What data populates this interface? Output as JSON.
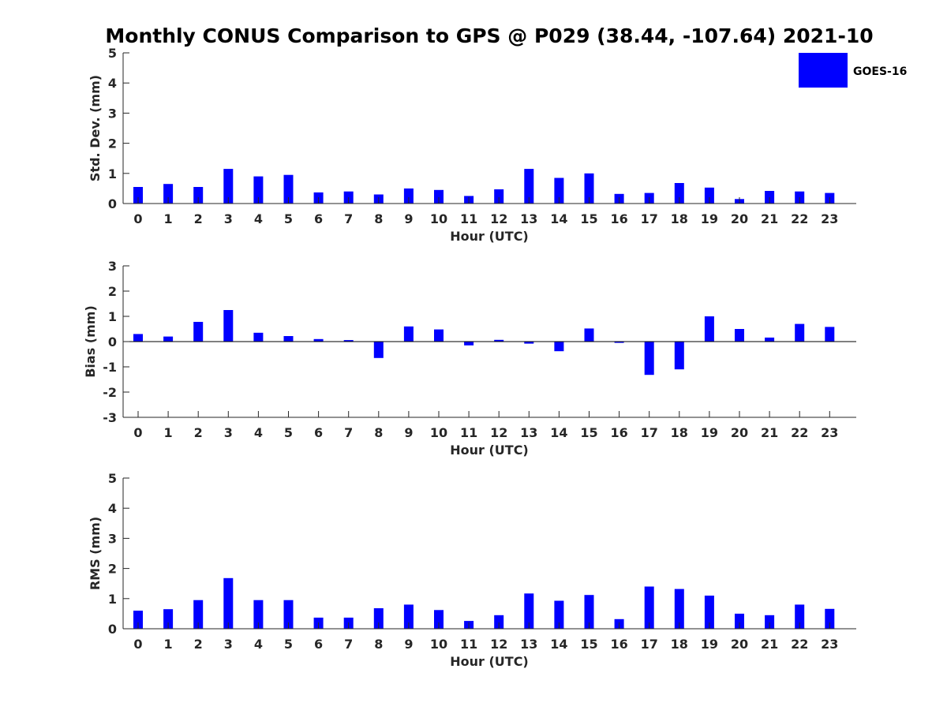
{
  "title": "Monthly CONUS Comparison to GPS @ P029 (38.44, -107.64) 2021-10",
  "legend": {
    "label": "GOES-16",
    "position": "top-right"
  },
  "colors": {
    "bar": "#0000ff",
    "axis": "#262626",
    "background": "#ffffff"
  },
  "chart_data": [
    {
      "type": "bar",
      "xlabel": "Hour (UTC)",
      "ylabel": "Std. Dev. (mm)",
      "categories": [
        "0",
        "1",
        "2",
        "3",
        "4",
        "5",
        "6",
        "7",
        "8",
        "9",
        "10",
        "11",
        "12",
        "13",
        "14",
        "15",
        "16",
        "17",
        "18",
        "19",
        "20",
        "21",
        "22",
        "23"
      ],
      "series": [
        {
          "name": "GOES-16",
          "values": [
            0.55,
            0.65,
            0.55,
            1.15,
            0.9,
            0.95,
            0.37,
            0.4,
            0.3,
            0.5,
            0.45,
            0.25,
            0.47,
            1.15,
            0.85,
            1.0,
            0.32,
            0.35,
            0.68,
            0.53,
            0.15,
            0.42,
            0.4,
            0.35
          ]
        }
      ],
      "ylim": [
        0,
        5
      ],
      "yticks": [
        0,
        1,
        2,
        3,
        4,
        5
      ],
      "grid": false
    },
    {
      "type": "bar",
      "xlabel": "Hour (UTC)",
      "ylabel": "Bias (mm)",
      "categories": [
        "0",
        "1",
        "2",
        "3",
        "4",
        "5",
        "6",
        "7",
        "8",
        "9",
        "10",
        "11",
        "12",
        "13",
        "14",
        "15",
        "16",
        "17",
        "18",
        "19",
        "20",
        "21",
        "22",
        "23"
      ],
      "series": [
        {
          "name": "GOES-16",
          "values": [
            0.3,
            0.2,
            0.78,
            1.25,
            0.35,
            0.22,
            0.1,
            0.06,
            -0.65,
            0.6,
            0.48,
            -0.15,
            0.07,
            -0.08,
            -0.38,
            0.52,
            -0.05,
            -1.32,
            -1.1,
            1.0,
            0.5,
            0.16,
            0.7,
            0.58
          ]
        }
      ],
      "ylim": [
        -3,
        3
      ],
      "yticks": [
        -3,
        -2,
        -1,
        0,
        1,
        2,
        3
      ],
      "grid": false
    },
    {
      "type": "bar",
      "xlabel": "Hour (UTC)",
      "ylabel": "RMS (mm)",
      "categories": [
        "0",
        "1",
        "2",
        "3",
        "4",
        "5",
        "6",
        "7",
        "8",
        "9",
        "10",
        "11",
        "12",
        "13",
        "14",
        "15",
        "16",
        "17",
        "18",
        "19",
        "20",
        "21",
        "22",
        "23"
      ],
      "series": [
        {
          "name": "GOES-16",
          "values": [
            0.6,
            0.65,
            0.95,
            1.68,
            0.95,
            0.95,
            0.37,
            0.37,
            0.68,
            0.8,
            0.62,
            0.26,
            0.45,
            1.17,
            0.93,
            1.12,
            0.32,
            1.4,
            1.32,
            1.1,
            0.5,
            0.45,
            0.8,
            0.66
          ]
        }
      ],
      "ylim": [
        0,
        5
      ],
      "yticks": [
        0,
        1,
        2,
        3,
        4,
        5
      ],
      "grid": false
    }
  ]
}
